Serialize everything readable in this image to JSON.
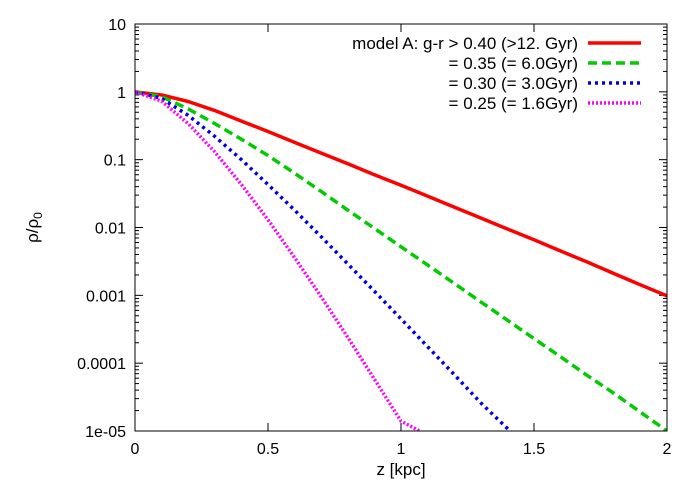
{
  "chart_data": {
    "type": "line",
    "xlabel": "z [kpc]",
    "ylabel_main": "ρ/ρ",
    "ylabel_sub": "0",
    "xlim": [
      0,
      2
    ],
    "ylim": [
      1e-05,
      10
    ],
    "yscale": "log",
    "grid": false,
    "legend_position": "top-right",
    "x_ticks": [
      0,
      0.5,
      1,
      1.5,
      2
    ],
    "x_tick_labels": [
      "0",
      "0.5",
      "1",
      "1.5",
      "2"
    ],
    "y_ticks": [
      10,
      1,
      0.1,
      0.01,
      0.001,
      0.0001,
      1e-05
    ],
    "y_tick_labels": [
      "10",
      "1",
      "0.1",
      "0.01",
      "0.001",
      "0.0001",
      "1e-05"
    ],
    "series": [
      {
        "name": "model A: g-r > 0.40 (>12. Gyr)",
        "color": "#ff0000",
        "dash": "solid",
        "x": [
          0,
          0.1,
          0.2,
          0.3,
          0.4,
          0.5,
          0.6,
          0.7,
          0.8,
          0.9,
          1.0,
          1.1,
          1.2,
          1.3,
          1.4,
          1.5,
          1.6,
          1.7,
          1.8,
          1.9,
          2.0
        ],
        "y": [
          1.0,
          0.9,
          0.72,
          0.53,
          0.37,
          0.26,
          0.18,
          0.125,
          0.087,
          0.06,
          0.042,
          0.029,
          0.02,
          0.0138,
          0.0095,
          0.0066,
          0.0045,
          0.0031,
          0.0021,
          0.00143,
          0.00098
        ]
      },
      {
        "name": "= 0.35 (= 6.0Gyr)",
        "color": "#00cc00",
        "dash": "dashed",
        "x": [
          0,
          0.1,
          0.2,
          0.3,
          0.4,
          0.5,
          0.6,
          0.7,
          0.8,
          0.9,
          1.0,
          1.1,
          1.2,
          1.3,
          1.4,
          1.5,
          1.6,
          1.7,
          1.8,
          1.9,
          2.0
        ],
        "y": [
          1.0,
          0.85,
          0.56,
          0.34,
          0.2,
          0.115,
          0.063,
          0.034,
          0.018,
          0.0097,
          0.0052,
          0.0028,
          0.0015,
          0.0008,
          0.00043,
          0.00023,
          0.000124,
          6.6e-05,
          3.6e-05,
          1.9e-05,
          1e-05
        ]
      },
      {
        "name": "= 0.30 (= 3.0Gyr)",
        "color": "#0000dd",
        "dash": "dotted",
        "x": [
          0,
          0.1,
          0.2,
          0.3,
          0.4,
          0.5,
          0.6,
          0.7,
          0.8,
          0.9,
          1.0,
          1.1,
          1.2,
          1.3,
          1.41
        ],
        "y": [
          1.0,
          0.8,
          0.45,
          0.22,
          0.1,
          0.043,
          0.018,
          0.0073,
          0.0029,
          0.00115,
          0.00045,
          0.000175,
          6.8e-05,
          2.6e-05,
          1e-05
        ]
      },
      {
        "name": "= 0.25 (= 1.6Gyr)",
        "color": "#ff00ff",
        "dash": "dense-dotted",
        "x": [
          0,
          0.1,
          0.2,
          0.3,
          0.4,
          0.5,
          0.6,
          0.7,
          0.8,
          0.9,
          1.0,
          1.07
        ],
        "y": [
          1.0,
          0.73,
          0.34,
          0.13,
          0.043,
          0.013,
          0.0036,
          0.00095,
          0.00024,
          5.8e-05,
          1.4e-05,
          1e-05
        ]
      }
    ]
  }
}
